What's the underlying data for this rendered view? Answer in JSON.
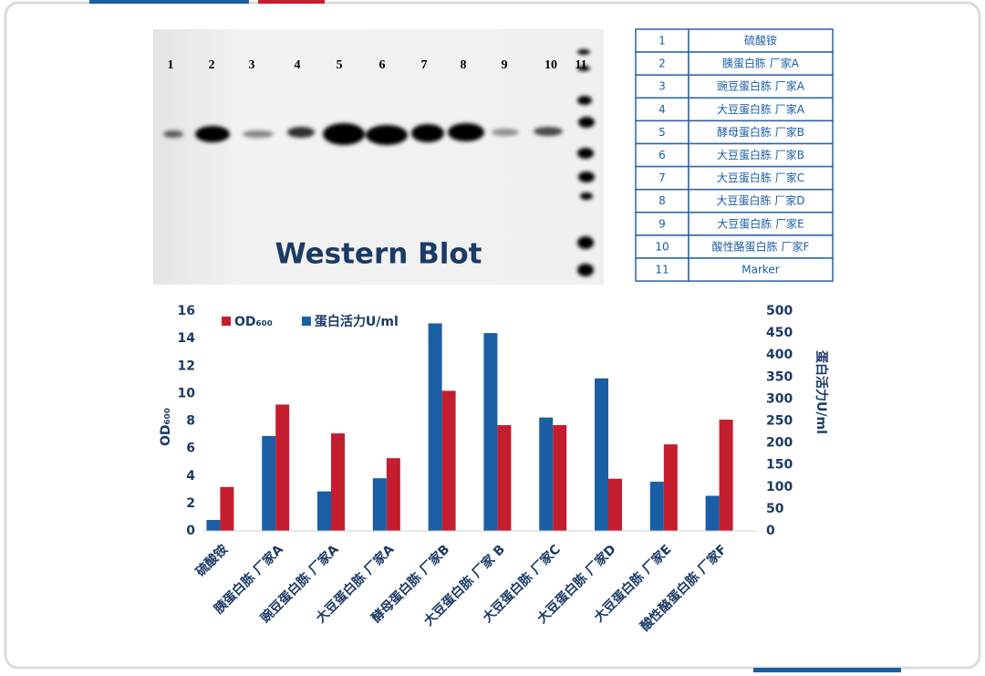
{
  "blot": {
    "title": "Western Blot",
    "lanes": [
      1,
      2,
      3,
      4,
      5,
      6,
      7,
      8,
      9,
      10,
      11
    ]
  },
  "table": {
    "rows": [
      [
        1,
        "硫酸铵"
      ],
      [
        2,
        "胰蛋白胨 厂家A"
      ],
      [
        3,
        "豌豆蛋白胨 厂家A"
      ],
      [
        4,
        "大豆蛋白胨 厂家A"
      ],
      [
        5,
        "酵母蛋白胨 厂家B"
      ],
      [
        6,
        "大豆蛋白胨 厂家B"
      ],
      [
        7,
        "大豆蛋白胨 厂家C"
      ],
      [
        8,
        "大豆蛋白胨 厂家D"
      ],
      [
        9,
        "大豆蛋白胨 厂家E"
      ],
      [
        10,
        "酸性酪蛋白胨 厂家F"
      ],
      [
        11,
        "Marker"
      ]
    ]
  },
  "chart_data": {
    "type": "bar",
    "categories": [
      "硫酸铵",
      "胰蛋白胨  厂家A",
      "豌豆蛋白胨  厂家A",
      "大豆蛋白胨  厂家A",
      "酵母蛋白胨  厂家B",
      "大豆蛋白胨  厂家 B",
      "大豆蛋白胨  厂家C",
      "大豆蛋白胨  厂家D",
      "大豆蛋白胨  厂家E",
      "酸性酪蛋白胨  厂家F"
    ],
    "series": [
      {
        "name": "OD₆₀₀",
        "color": "#c41e2e",
        "values": [
          3.2,
          9.2,
          7.1,
          5.3,
          10.2,
          7.7,
          7.7,
          3.8,
          6.3,
          8.1
        ]
      },
      {
        "name": "蛋白活力U/ml",
        "color": "#1a5ea6",
        "axis": "y2",
        "values": [
          25,
          216,
          90,
          120,
          472,
          450,
          258,
          347,
          112,
          80
        ]
      }
    ],
    "ylabel": "OD₆₀₀",
    "y2label": "蛋白活力U/ml",
    "ylim": [
      0,
      16
    ],
    "yticks": [
      0,
      2,
      4,
      6,
      8,
      10,
      12,
      14,
      16
    ],
    "y2lim": [
      0,
      500
    ],
    "y2ticks": [
      0,
      50,
      100,
      150,
      200,
      250,
      300,
      350,
      400,
      450,
      500
    ],
    "legend": "top-left",
    "grid": false
  }
}
